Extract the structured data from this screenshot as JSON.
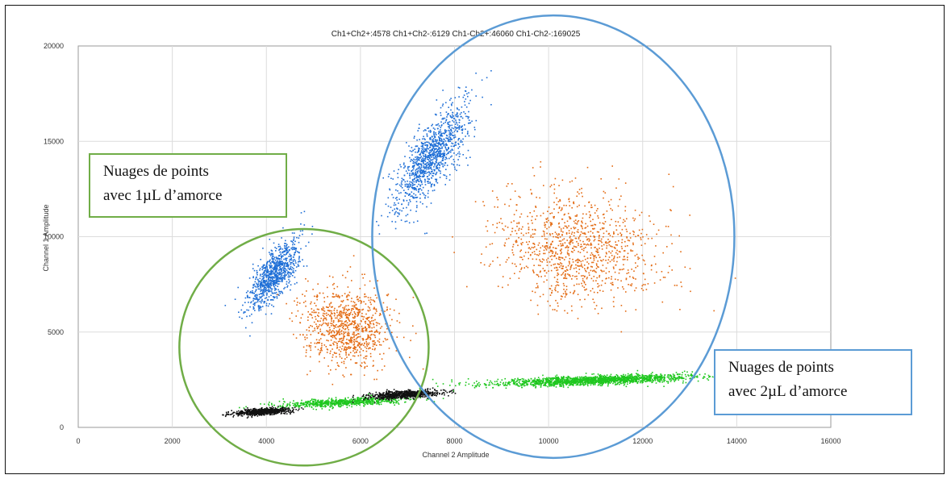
{
  "chart_data": {
    "type": "scatter",
    "title": "Ch1+Ch2+:4578  Ch1+Ch2-:6129  Ch1-Ch2+:46060  Ch1-Ch2-:169025",
    "xlabel": "Channel 2 Amplitude",
    "ylabel": "Channel 1 Amplitude",
    "xlim": [
      0,
      16000
    ],
    "ylim": [
      0,
      20000
    ],
    "xticks": [
      "0",
      "2000",
      "4000",
      "6000",
      "8000",
      "10000",
      "12000",
      "14000",
      "16000"
    ],
    "yticks": [
      "0",
      "5000",
      "10000",
      "15000",
      "20000"
    ],
    "grid": true,
    "series": [
      {
        "color": "#1f6fd6",
        "clusters": [
          {
            "cx": 4150,
            "cy": 8000,
            "sx": 260,
            "sy": 900,
            "rho": 0.7,
            "n": 900
          },
          {
            "cx": 7500,
            "cy": 14300,
            "sx": 380,
            "sy": 1400,
            "rho": 0.75,
            "n": 1100
          }
        ]
      },
      {
        "color": "#e36a12",
        "clusters": [
          {
            "cx": 5700,
            "cy": 5300,
            "sx": 480,
            "sy": 1000,
            "rho": -0.1,
            "n": 900
          },
          {
            "cx": 10600,
            "cy": 9400,
            "sx": 850,
            "sy": 1500,
            "rho": -0.1,
            "n": 1100
          }
        ]
      },
      {
        "color": "#1fc71f",
        "clusters": [
          {
            "cx": 5600,
            "cy": 1350,
            "sx": 700,
            "sy": 130,
            "rho": 0.6,
            "n": 700
          },
          {
            "cx": 10900,
            "cy": 2500,
            "sx": 1100,
            "sy": 150,
            "rho": 0.6,
            "n": 1600
          }
        ]
      },
      {
        "color": "#111111",
        "clusters": [
          {
            "cx": 3900,
            "cy": 850,
            "sx": 280,
            "sy": 90,
            "rho": 0.4,
            "n": 700
          },
          {
            "cx": 6900,
            "cy": 1750,
            "sx": 380,
            "sy": 110,
            "rho": 0.5,
            "n": 700
          }
        ]
      }
    ]
  },
  "annotations": [
    {
      "text_line1": "Nuages de points",
      "text_line2": "avec 1µL d’amorce",
      "color": "#70ad47"
    },
    {
      "text_line1": "Nuages de points",
      "text_line2": "avec 2µL d’amorce",
      "color": "#5b9bd5"
    }
  ],
  "circles": [
    {
      "color": "#70ad47",
      "data_cx": 4800,
      "data_cy": 4200,
      "data_rx": 2650,
      "data_ry": 6200
    },
    {
      "color": "#5b9bd5",
      "data_cx": 10100,
      "data_cy": 10000,
      "data_rx": 3850,
      "data_ry": 11600
    }
  ]
}
